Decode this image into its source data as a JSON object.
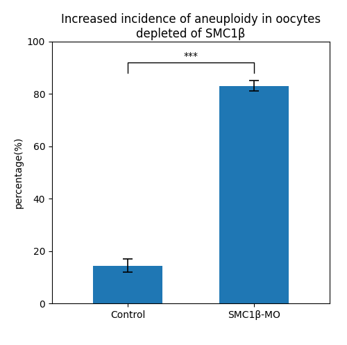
{
  "chart_data": {
    "type": "bar",
    "title": "Increased incidence of aneuploidy in oocytes depleted of SMC1β",
    "categories": [
      "Control",
      "SMC1β-MO"
    ],
    "values": [
      14.5,
      83.0
    ],
    "errors": [
      2.5,
      2.0
    ],
    "ylabel": "percentage(%)",
    "ylim": [
      0,
      100
    ],
    "yticks": [
      0,
      20,
      40,
      60,
      80,
      100
    ],
    "annotation": "***"
  }
}
